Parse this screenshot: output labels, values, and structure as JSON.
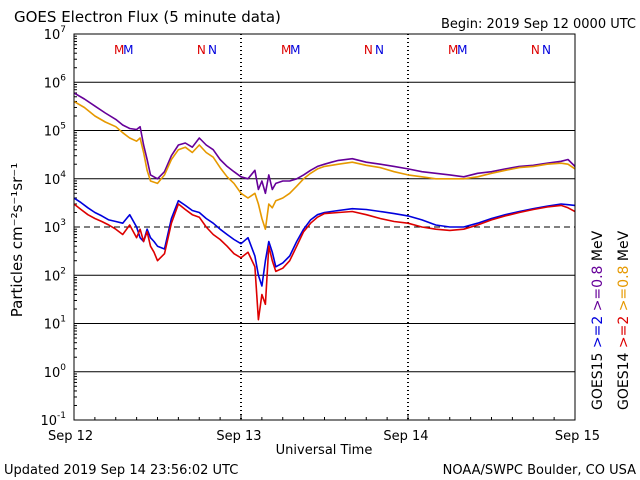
{
  "header": {
    "title": "GOES Electron Flux (5 minute data)",
    "begin": "Begin: 2019 Sep 12 0000 UTC"
  },
  "footer": {
    "updated": "Updated 2019 Sep 14 23:56:02 UTC",
    "source": "NOAA/SWPC Boulder, CO USA"
  },
  "chart_data": {
    "type": "line",
    "title": "GOES Electron Flux (5 minute data)",
    "xlabel": "Universal Time",
    "ylabel": "Particles cm⁻²s⁻¹sr⁻¹",
    "y_scale": "log",
    "ylim": [
      0.1,
      10000000
    ],
    "xlim": [
      0,
      72
    ],
    "x_unit": "hours since 2019 Sep 12 0000 UTC",
    "x_ticks": [
      {
        "x": 0,
        "label": "Sep 12"
      },
      {
        "x": 24,
        "label": "Sep 13"
      },
      {
        "x": 48,
        "label": "Sep 14"
      },
      {
        "x": 72,
        "label": "Sep 15"
      }
    ],
    "y_ticks": [
      {
        "value": 10000000,
        "base": "10",
        "exp": "7"
      },
      {
        "value": 1000000,
        "base": "10",
        "exp": "6"
      },
      {
        "value": 100000,
        "base": "10",
        "exp": "5"
      },
      {
        "value": 10000,
        "base": "10",
        "exp": "4"
      },
      {
        "value": 1000,
        "base": "10",
        "exp": "3"
      },
      {
        "value": 100,
        "base": "10",
        "exp": "2"
      },
      {
        "value": 10,
        "base": "10",
        "exp": "1"
      },
      {
        "value": 1,
        "base": "10",
        "exp": "0"
      },
      {
        "value": 0.1,
        "base": "10",
        "exp": "-1"
      }
    ],
    "threshold": {
      "value": 1000,
      "style": "dashed"
    },
    "markers": [
      {
        "x": 6.5,
        "label": "M",
        "color": "#dd0000"
      },
      {
        "x": 7.8,
        "label": "M",
        "color": "#0000dd"
      },
      {
        "x": 18.3,
        "label": "N",
        "color": "#dd0000"
      },
      {
        "x": 19.9,
        "label": "N",
        "color": "#0000dd"
      },
      {
        "x": 30.5,
        "label": "M",
        "color": "#dd0000"
      },
      {
        "x": 31.8,
        "label": "M",
        "color": "#0000dd"
      },
      {
        "x": 42.3,
        "label": "N",
        "color": "#dd0000"
      },
      {
        "x": 43.9,
        "label": "N",
        "color": "#0000dd"
      },
      {
        "x": 54.5,
        "label": "M",
        "color": "#dd0000"
      },
      {
        "x": 55.8,
        "label": "M",
        "color": "#0000dd"
      },
      {
        "x": 66.3,
        "label": "N",
        "color": "#dd0000"
      },
      {
        "x": 67.9,
        "label": "N",
        "color": "#0000dd"
      }
    ],
    "legend": {
      "placement": "right",
      "groups": [
        {
          "satellite": "GOES15",
          "items": [
            {
              "label": ">=2",
              "color": "#0000dd"
            },
            {
              "label": ">=0.8",
              "color": "#660099"
            },
            {
              "label": "MeV",
              "color": "#000000"
            }
          ]
        },
        {
          "satellite": "GOES14",
          "items": [
            {
              "label": ">=2",
              "color": "#dd0000"
            },
            {
              "label": ">=0.8",
              "color": "#e69900"
            },
            {
              "label": "MeV",
              "color": "#000000"
            }
          ]
        }
      ]
    },
    "series": [
      {
        "name": "GOES15 >=0.8 MeV",
        "color": "#660099",
        "x": [
          0,
          1.5,
          3,
          4.5,
          6,
          7,
          8,
          9,
          9.5,
          10,
          10.5,
          11,
          12,
          13,
          14,
          15,
          16,
          17,
          18,
          19,
          20,
          21,
          22,
          23,
          24,
          25,
          26,
          26.5,
          27,
          27.5,
          28,
          28.5,
          29,
          30,
          31,
          32,
          33,
          34,
          35,
          36,
          37,
          38,
          40,
          42,
          44,
          46,
          48,
          50,
          52,
          54,
          56,
          58,
          60,
          62,
          64,
          66,
          68,
          70,
          71,
          72
        ],
        "y": [
          600000,
          450000,
          320000,
          230000,
          170000,
          130000,
          110000,
          105000,
          120000,
          50000,
          25000,
          12000,
          10000,
          14000,
          30000,
          50000,
          55000,
          45000,
          70000,
          50000,
          40000,
          25000,
          18000,
          14000,
          11000,
          10000,
          15000,
          6000,
          9000,
          5000,
          12000,
          6000,
          8000,
          9000,
          9000,
          10000,
          12000,
          15000,
          18000,
          20000,
          22000,
          24000,
          26000,
          22000,
          20000,
          18000,
          16000,
          14000,
          13000,
          12000,
          11000,
          13000,
          14000,
          16000,
          18000,
          19000,
          21000,
          23000,
          25000,
          18000
        ]
      },
      {
        "name": "GOES14 >=0.8 MeV",
        "color": "#e69900",
        "x": [
          0,
          1.5,
          3,
          4.5,
          6,
          7,
          8,
          9,
          9.5,
          10,
          10.5,
          11,
          12,
          13,
          14,
          15,
          16,
          17,
          18,
          19,
          20,
          21,
          22,
          23,
          24,
          25,
          26,
          26.5,
          27,
          27.5,
          28,
          28.5,
          29,
          30,
          31,
          32,
          33,
          34,
          35,
          36,
          37,
          38,
          40,
          42,
          44,
          46,
          48,
          50,
          52,
          54,
          56,
          58,
          60,
          62,
          64,
          66,
          68,
          70,
          71,
          72
        ],
        "y": [
          400000,
          300000,
          200000,
          150000,
          120000,
          90000,
          70000,
          60000,
          70000,
          35000,
          15000,
          9000,
          8000,
          12000,
          25000,
          40000,
          45000,
          35000,
          50000,
          35000,
          28000,
          17000,
          11000,
          8000,
          5000,
          4000,
          5000,
          3000,
          1500,
          900,
          3000,
          2500,
          3500,
          4000,
          5000,
          7000,
          10000,
          13000,
          16000,
          18000,
          19000,
          20000,
          22000,
          19000,
          17000,
          14000,
          12000,
          11000,
          10000,
          10000,
          10000,
          11000,
          13000,
          15000,
          17000,
          18000,
          20000,
          21000,
          20000,
          16000
        ]
      },
      {
        "name": "GOES15 >=2 MeV",
        "color": "#0000dd",
        "x": [
          0,
          1,
          2,
          3,
          4,
          5,
          6,
          7,
          8,
          9,
          9.5,
          10,
          10.5,
          11,
          11.5,
          12,
          13,
          14,
          15,
          16,
          17,
          18,
          19,
          20,
          21,
          22,
          23,
          24,
          25,
          26,
          26.5,
          27,
          27.5,
          28,
          28.5,
          29,
          30,
          31,
          32,
          33,
          34,
          35,
          36,
          38,
          40,
          42,
          44,
          46,
          48,
          50,
          52,
          54,
          56,
          58,
          60,
          62,
          64,
          66,
          68,
          70,
          71,
          72
        ],
        "y": [
          4000,
          3200,
          2500,
          2000,
          1700,
          1400,
          1300,
          1200,
          1800,
          1000,
          600,
          500,
          900,
          600,
          500,
          400,
          350,
          1500,
          3500,
          2800,
          2200,
          2000,
          1500,
          1200,
          900,
          700,
          550,
          450,
          600,
          250,
          100,
          60,
          200,
          500,
          300,
          150,
          180,
          250,
          500,
          900,
          1400,
          1800,
          2000,
          2200,
          2400,
          2300,
          2100,
          1900,
          1700,
          1400,
          1100,
          1000,
          1000,
          1200,
          1500,
          1800,
          2100,
          2400,
          2700,
          3000,
          2900,
          2800
        ]
      },
      {
        "name": "GOES14 >=2 MeV",
        "color": "#dd0000",
        "x": [
          0,
          1,
          2,
          3,
          4,
          5,
          6,
          7,
          8,
          9,
          9.5,
          10,
          10.5,
          11,
          11.5,
          12,
          13,
          14,
          15,
          16,
          17,
          18,
          19,
          20,
          21,
          22,
          23,
          24,
          25,
          26,
          26.5,
          27,
          27.5,
          28,
          28.5,
          29,
          30,
          31,
          32,
          33,
          34,
          35,
          36,
          38,
          40,
          42,
          44,
          46,
          48,
          50,
          52,
          54,
          56,
          58,
          60,
          62,
          64,
          66,
          68,
          70,
          71,
          72
        ],
        "y": [
          3000,
          2300,
          1800,
          1500,
          1300,
          1100,
          900,
          700,
          1100,
          600,
          900,
          500,
          800,
          400,
          300,
          200,
          280,
          1200,
          3000,
          2300,
          1800,
          1600,
          1000,
          700,
          550,
          400,
          280,
          230,
          300,
          150,
          12,
          40,
          25,
          400,
          200,
          120,
          140,
          200,
          400,
          800,
          1200,
          1600,
          1900,
          2000,
          2100,
          1800,
          1500,
          1300,
          1200,
          1000,
          900,
          850,
          900,
          1100,
          1400,
          1700,
          2000,
          2300,
          2600,
          2800,
          2500,
          2100
        ]
      }
    ]
  }
}
